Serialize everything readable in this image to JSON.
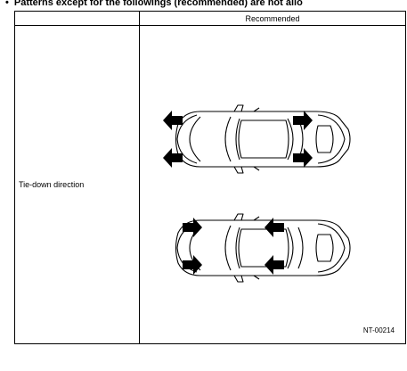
{
  "heading": {
    "bullet": "•",
    "text": "Patterns except for the followings (recommended) are not allo"
  },
  "table": {
    "column_header": "Recommended",
    "row_label": "Tie-down direction",
    "figure_code": "NT-00214"
  },
  "figure": {
    "vehicles": [
      {
        "name": "upper",
        "arrows": "outward"
      },
      {
        "name": "lower",
        "arrows": "inward"
      }
    ]
  }
}
